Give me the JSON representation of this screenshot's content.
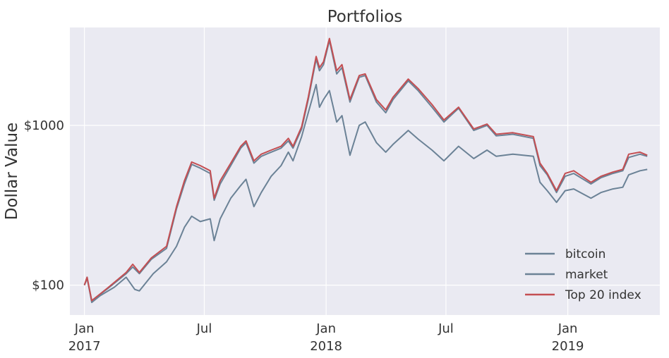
{
  "chart_data": {
    "type": "line",
    "title": "Portfolios",
    "xlabel": "",
    "ylabel": "Dollar Value",
    "yscale": "log",
    "ylim": [
      65,
      4100
    ],
    "xlim": [
      "2016-12-10",
      "2019-05-20"
    ],
    "grid": true,
    "legend_position": "lower-right",
    "x_ticks": [
      {
        "date": "2017-01-01",
        "label": "Jan",
        "sublabel": "2017"
      },
      {
        "date": "2017-07-01",
        "label": "Jul",
        "sublabel": ""
      },
      {
        "date": "2018-01-01",
        "label": "Jan",
        "sublabel": "2018"
      },
      {
        "date": "2018-07-01",
        "label": "Jul",
        "sublabel": ""
      },
      {
        "date": "2019-01-01",
        "label": "Jan",
        "sublabel": "2019"
      }
    ],
    "y_ticks": [
      {
        "value": 100,
        "label": "$100"
      },
      {
        "value": 1000,
        "label": "$1000"
      }
    ],
    "series": [
      {
        "name": "bitcoin",
        "color": "#6b8296",
        "points": [
          [
            "2017-01-01",
            100
          ],
          [
            "2017-01-05",
            112
          ],
          [
            "2017-01-12",
            78
          ],
          [
            "2017-01-25",
            86
          ],
          [
            "2017-02-15",
            97
          ],
          [
            "2017-03-05",
            112
          ],
          [
            "2017-03-18",
            94
          ],
          [
            "2017-03-25",
            92
          ],
          [
            "2017-04-15",
            118
          ],
          [
            "2017-05-05",
            140
          ],
          [
            "2017-05-20",
            175
          ],
          [
            "2017-06-01",
            230
          ],
          [
            "2017-06-12",
            270
          ],
          [
            "2017-06-25",
            250
          ],
          [
            "2017-07-10",
            260
          ],
          [
            "2017-07-16",
            190
          ],
          [
            "2017-07-25",
            260
          ],
          [
            "2017-08-10",
            350
          ],
          [
            "2017-08-25",
            420
          ],
          [
            "2017-09-02",
            460
          ],
          [
            "2017-09-14",
            310
          ],
          [
            "2017-09-25",
            380
          ],
          [
            "2017-10-10",
            480
          ],
          [
            "2017-10-25",
            560
          ],
          [
            "2017-11-05",
            680
          ],
          [
            "2017-11-12",
            600
          ],
          [
            "2017-11-25",
            850
          ],
          [
            "2017-12-05",
            1200
          ],
          [
            "2017-12-17",
            1800
          ],
          [
            "2017-12-22",
            1300
          ],
          [
            "2017-12-28",
            1450
          ],
          [
            "2018-01-06",
            1650
          ],
          [
            "2018-01-17",
            1050
          ],
          [
            "2018-01-25",
            1150
          ],
          [
            "2018-02-06",
            650
          ],
          [
            "2018-02-20",
            1000
          ],
          [
            "2018-03-01",
            1050
          ],
          [
            "2018-03-18",
            780
          ],
          [
            "2018-04-01",
            680
          ],
          [
            "2018-04-12",
            760
          ],
          [
            "2018-05-05",
            930
          ],
          [
            "2018-05-20",
            820
          ],
          [
            "2018-06-10",
            700
          ],
          [
            "2018-06-28",
            600
          ],
          [
            "2018-07-20",
            740
          ],
          [
            "2018-08-12",
            620
          ],
          [
            "2018-09-01",
            700
          ],
          [
            "2018-09-15",
            640
          ],
          [
            "2018-10-10",
            660
          ],
          [
            "2018-11-10",
            640
          ],
          [
            "2018-11-20",
            440
          ],
          [
            "2018-12-01",
            390
          ],
          [
            "2018-12-15",
            330
          ],
          [
            "2018-12-28",
            390
          ],
          [
            "2019-01-10",
            400
          ],
          [
            "2019-02-05",
            350
          ],
          [
            "2019-02-20",
            380
          ],
          [
            "2019-03-10",
            400
          ],
          [
            "2019-03-25",
            410
          ],
          [
            "2019-04-03",
            490
          ],
          [
            "2019-04-20",
            520
          ],
          [
            "2019-05-01",
            530
          ]
        ]
      },
      {
        "name": "market",
        "color": "#6b8296",
        "points": [
          [
            "2017-01-01",
            100
          ],
          [
            "2017-01-05",
            110
          ],
          [
            "2017-01-12",
            80
          ],
          [
            "2017-02-05",
            95
          ],
          [
            "2017-03-05",
            118
          ],
          [
            "2017-03-15",
            130
          ],
          [
            "2017-03-25",
            118
          ],
          [
            "2017-04-12",
            145
          ],
          [
            "2017-05-05",
            170
          ],
          [
            "2017-05-20",
            300
          ],
          [
            "2017-06-01",
            430
          ],
          [
            "2017-06-12",
            570
          ],
          [
            "2017-06-25",
            540
          ],
          [
            "2017-07-10",
            500
          ],
          [
            "2017-07-16",
            340
          ],
          [
            "2017-07-25",
            430
          ],
          [
            "2017-08-10",
            560
          ],
          [
            "2017-08-25",
            720
          ],
          [
            "2017-09-02",
            780
          ],
          [
            "2017-09-14",
            580
          ],
          [
            "2017-09-25",
            640
          ],
          [
            "2017-10-10",
            680
          ],
          [
            "2017-10-25",
            720
          ],
          [
            "2017-11-05",
            800
          ],
          [
            "2017-11-12",
            720
          ],
          [
            "2017-11-25",
            950
          ],
          [
            "2017-12-05",
            1450
          ],
          [
            "2017-12-17",
            2600
          ],
          [
            "2017-12-22",
            2200
          ],
          [
            "2017-12-28",
            2400
          ],
          [
            "2018-01-06",
            3400
          ],
          [
            "2018-01-17",
            2100
          ],
          [
            "2018-01-25",
            2300
          ],
          [
            "2018-02-06",
            1400
          ],
          [
            "2018-02-20",
            2000
          ],
          [
            "2018-03-01",
            2050
          ],
          [
            "2018-03-18",
            1400
          ],
          [
            "2018-04-01",
            1200
          ],
          [
            "2018-04-12",
            1450
          ],
          [
            "2018-05-05",
            1900
          ],
          [
            "2018-05-20",
            1650
          ],
          [
            "2018-06-10",
            1300
          ],
          [
            "2018-06-28",
            1050
          ],
          [
            "2018-07-20",
            1280
          ],
          [
            "2018-08-12",
            930
          ],
          [
            "2018-09-01",
            1000
          ],
          [
            "2018-09-15",
            860
          ],
          [
            "2018-10-10",
            880
          ],
          [
            "2018-11-10",
            830
          ],
          [
            "2018-11-20",
            560
          ],
          [
            "2018-12-01",
            490
          ],
          [
            "2018-12-15",
            380
          ],
          [
            "2018-12-28",
            480
          ],
          [
            "2019-01-10",
            500
          ],
          [
            "2019-02-05",
            430
          ],
          [
            "2019-02-20",
            470
          ],
          [
            "2019-03-10",
            500
          ],
          [
            "2019-03-25",
            520
          ],
          [
            "2019-04-03",
            630
          ],
          [
            "2019-04-20",
            660
          ],
          [
            "2019-05-01",
            640
          ]
        ]
      },
      {
        "name": "Top 20 index",
        "color": "#c44e52",
        "points": [
          [
            "2017-01-01",
            100
          ],
          [
            "2017-01-05",
            112
          ],
          [
            "2017-01-12",
            80
          ],
          [
            "2017-02-05",
            96
          ],
          [
            "2017-03-05",
            120
          ],
          [
            "2017-03-15",
            135
          ],
          [
            "2017-03-25",
            120
          ],
          [
            "2017-04-12",
            148
          ],
          [
            "2017-05-05",
            175
          ],
          [
            "2017-05-20",
            310
          ],
          [
            "2017-06-01",
            450
          ],
          [
            "2017-06-12",
            590
          ],
          [
            "2017-06-25",
            560
          ],
          [
            "2017-07-10",
            520
          ],
          [
            "2017-07-16",
            350
          ],
          [
            "2017-07-25",
            450
          ],
          [
            "2017-08-10",
            580
          ],
          [
            "2017-08-25",
            740
          ],
          [
            "2017-09-02",
            800
          ],
          [
            "2017-09-14",
            600
          ],
          [
            "2017-09-25",
            660
          ],
          [
            "2017-10-10",
            700
          ],
          [
            "2017-10-25",
            740
          ],
          [
            "2017-11-05",
            830
          ],
          [
            "2017-11-12",
            740
          ],
          [
            "2017-11-25",
            980
          ],
          [
            "2017-12-05",
            1500
          ],
          [
            "2017-12-17",
            2700
          ],
          [
            "2017-12-22",
            2300
          ],
          [
            "2017-12-28",
            2500
          ],
          [
            "2018-01-06",
            3500
          ],
          [
            "2018-01-17",
            2200
          ],
          [
            "2018-01-25",
            2400
          ],
          [
            "2018-02-06",
            1450
          ],
          [
            "2018-02-20",
            2050
          ],
          [
            "2018-03-01",
            2100
          ],
          [
            "2018-03-18",
            1450
          ],
          [
            "2018-04-01",
            1250
          ],
          [
            "2018-04-12",
            1500
          ],
          [
            "2018-05-05",
            1950
          ],
          [
            "2018-05-20",
            1700
          ],
          [
            "2018-06-10",
            1350
          ],
          [
            "2018-06-28",
            1080
          ],
          [
            "2018-07-20",
            1300
          ],
          [
            "2018-08-12",
            950
          ],
          [
            "2018-09-01",
            1020
          ],
          [
            "2018-09-15",
            880
          ],
          [
            "2018-10-10",
            900
          ],
          [
            "2018-11-10",
            850
          ],
          [
            "2018-11-20",
            580
          ],
          [
            "2018-12-01",
            500
          ],
          [
            "2018-12-15",
            390
          ],
          [
            "2018-12-28",
            500
          ],
          [
            "2019-01-10",
            520
          ],
          [
            "2019-02-05",
            440
          ],
          [
            "2019-02-20",
            480
          ],
          [
            "2019-03-10",
            510
          ],
          [
            "2019-03-25",
            530
          ],
          [
            "2019-04-03",
            660
          ],
          [
            "2019-04-20",
            680
          ],
          [
            "2019-05-01",
            650
          ]
        ]
      }
    ]
  }
}
